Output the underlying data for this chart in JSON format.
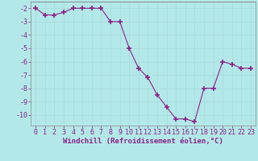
{
  "x": [
    0,
    1,
    2,
    3,
    4,
    5,
    6,
    7,
    8,
    9,
    10,
    11,
    12,
    13,
    14,
    15,
    16,
    17,
    18,
    19,
    20,
    21,
    22,
    23
  ],
  "y": [
    -2.0,
    -2.5,
    -2.5,
    -2.3,
    -2.0,
    -2.0,
    -2.0,
    -2.0,
    -3.0,
    -3.0,
    -5.0,
    -6.5,
    -7.2,
    -8.5,
    -9.4,
    -10.3,
    -10.3,
    -10.5,
    -8.0,
    -8.0,
    -6.0,
    -6.2,
    -6.5,
    -6.5
  ],
  "line_color": "#882288",
  "marker": "+",
  "bg_color": "#b3e8e8",
  "grid_color": "#aadddd",
  "xlabel": "Windchill (Refroidissement éolien,°C)",
  "xlabel_fontsize": 6.5,
  "tick_fontsize": 6.0,
  "ylim": [
    -10.8,
    -1.5
  ],
  "xlim": [
    -0.5,
    23.5
  ],
  "yticks": [
    -2,
    -3,
    -4,
    -5,
    -6,
    -7,
    -8,
    -9,
    -10
  ],
  "xticks": [
    0,
    1,
    2,
    3,
    4,
    5,
    6,
    7,
    8,
    9,
    10,
    11,
    12,
    13,
    14,
    15,
    16,
    17,
    18,
    19,
    20,
    21,
    22,
    23
  ]
}
